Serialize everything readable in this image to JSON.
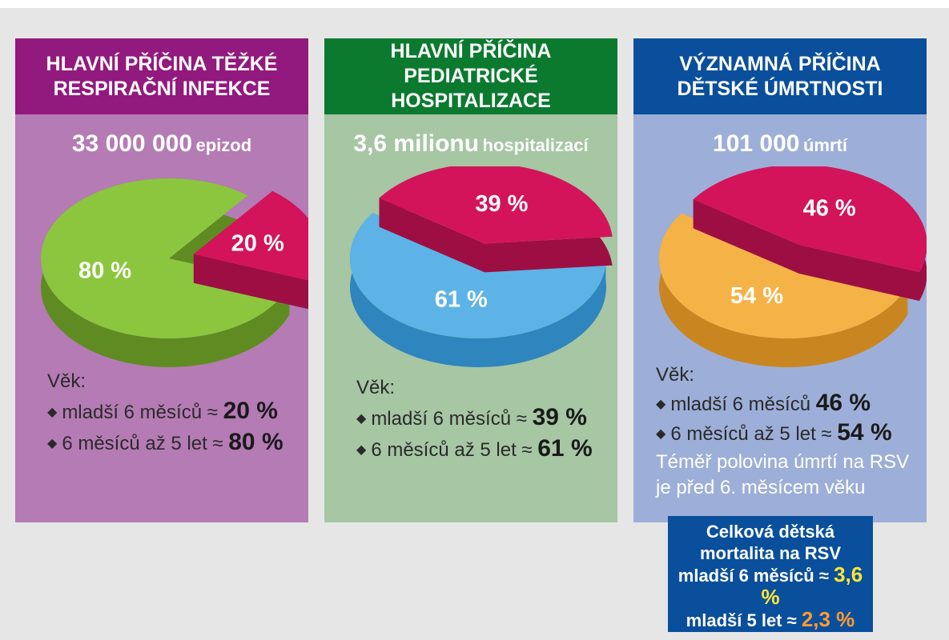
{
  "panels": [
    {
      "header_line1": "HLAVNÍ PŘÍČINA TĚŽKÉ",
      "header_line2": "RESPIRAČNÍ INFEKCE",
      "header_color": "#92197e",
      "panel_color": "#b57bb4",
      "stat_value": "33 000 000",
      "stat_unit": "epizod",
      "age_heading": "Věk:",
      "row1_label": "mladší 6 měsíců ≈",
      "row1_value": "20 %",
      "row2_label": "6 měsíců až 5 let ≈",
      "row2_value": "80 %",
      "note_line1": "",
      "note_line2": ""
    },
    {
      "header_line1": "HLAVNÍ PŘÍČINA",
      "header_line2": "PEDIATRICKÉ HOSPITALIZACE",
      "header_color": "#0b7a2f",
      "panel_color": "#a6c6a4",
      "stat_value": "3,6 milionu",
      "stat_unit": "hospitalizací",
      "age_heading": "Věk:",
      "row1_label": "mladší 6 měsíců ≈",
      "row1_value": "39 %",
      "row2_label": "6 měsíců až 5 let ≈",
      "row2_value": "61 %",
      "note_line1": "",
      "note_line2": ""
    },
    {
      "header_line1": "VÝZNAMNÁ PŘÍČINA",
      "header_line2": "DĚTSKÉ ÚMRTNOSTI",
      "header_color": "#0a4f9c",
      "panel_color": "#9dafd8",
      "stat_value": "101 000",
      "stat_unit": "úmrtí",
      "age_heading": "Věk:",
      "row1_label": "mladší 6 měsíců",
      "row1_value": "46 %",
      "row2_label": "6 měsíců až 5 let ≈",
      "row2_value": "54 %",
      "note_line1": "Téměř polovina úmrtí na RSV",
      "note_line2": "je před 6. měsícem věku"
    }
  ],
  "mortality_box": {
    "line1": "Celková dětská",
    "line2": "mortalita na RSV",
    "line3_label": "mladší 6 měsíců ≈",
    "line3_value": "3,6 %",
    "line4_label": "mladší 5 let ≈",
    "line4_value": "2,3 %"
  },
  "chart_data": [
    {
      "type": "pie",
      "categories": [
        "mladší 6 měsíců",
        "6 měsíců až 5 let"
      ],
      "values": [
        20,
        80
      ],
      "labels": [
        "20 %",
        "80 %"
      ],
      "colors": [
        "#d4145a",
        "#8cc63f"
      ],
      "side_colors": [
        "#9d0f43",
        "#5f8c22"
      ],
      "title": "",
      "exploded_slice": 0
    },
    {
      "type": "pie",
      "categories": [
        "mladší 6 měsíců",
        "6 měsíců až 5 let"
      ],
      "values": [
        39,
        61
      ],
      "labels": [
        "39 %",
        "61 %"
      ],
      "colors": [
        "#d4145a",
        "#5db3e6"
      ],
      "side_colors": [
        "#9d0f43",
        "#2f85bd"
      ],
      "title": "",
      "exploded_slice": 0
    },
    {
      "type": "pie",
      "categories": [
        "mladší 6 měsíců",
        "6 měsíců až 5 let"
      ],
      "values": [
        46,
        54
      ],
      "labels": [
        "46 %",
        "54 %"
      ],
      "colors": [
        "#d4145a",
        "#f5b347"
      ],
      "side_colors": [
        "#9d0f43",
        "#c98620"
      ],
      "title": "",
      "exploded_slice": 0
    }
  ]
}
